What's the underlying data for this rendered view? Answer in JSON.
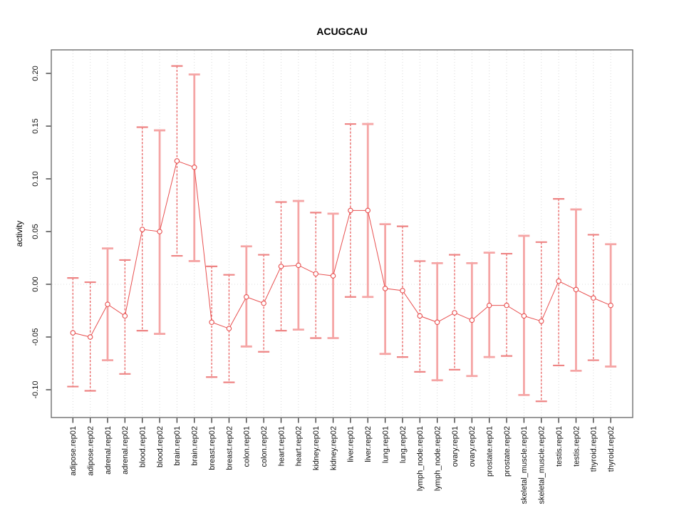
{
  "chart_data": {
    "type": "line",
    "title": "ACUGCAU",
    "ylabel": "activity",
    "xlabel": "",
    "legend": "none",
    "grid": "vertical-dotted",
    "zero_line": true,
    "ylim": [
      -0.126,
      0.222
    ],
    "yticks": [
      -0.1,
      -0.05,
      0.0,
      0.05,
      0.1,
      0.15,
      0.2
    ],
    "categories": [
      "adipose.rep01",
      "adipose.rep02",
      "adrenal.rep01",
      "adrenal.rep02",
      "blood.rep01",
      "blood.rep02",
      "brain.rep01",
      "brain.rep02",
      "breast.rep01",
      "breast.rep02",
      "colon.rep01",
      "colon.rep02",
      "heart.rep01",
      "heart.rep02",
      "kidney.rep01",
      "kidney.rep02",
      "liver.rep01",
      "liver.rep02",
      "lung.rep01",
      "lung.rep02",
      "lymph_node.rep01",
      "lymph_node.rep02",
      "ovary.rep01",
      "ovary.rep02",
      "prostate.rep01",
      "prostate.rep02",
      "skeletal_muscle.rep01",
      "skeletal_muscle.rep02",
      "testis.rep01",
      "testis.rep02",
      "thyroid.rep01",
      "thyroid.rep02"
    ],
    "series": [
      {
        "name": "activity",
        "values": [
          -0.046,
          -0.05,
          -0.019,
          -0.03,
          0.052,
          0.05,
          0.117,
          0.111,
          -0.036,
          -0.042,
          -0.012,
          -0.018,
          0.017,
          0.018,
          0.01,
          0.008,
          0.07,
          0.07,
          -0.004,
          -0.006,
          -0.03,
          -0.036,
          -0.027,
          -0.034,
          -0.02,
          -0.02,
          -0.03,
          -0.035,
          0.003,
          -0.005,
          -0.013,
          -0.02
        ],
        "lower": [
          -0.097,
          -0.101,
          -0.072,
          -0.085,
          -0.044,
          -0.047,
          0.027,
          0.022,
          -0.088,
          -0.093,
          -0.059,
          -0.064,
          -0.044,
          -0.043,
          -0.051,
          -0.051,
          -0.012,
          -0.012,
          -0.066,
          -0.069,
          -0.083,
          -0.091,
          -0.081,
          -0.087,
          -0.069,
          -0.068,
          -0.105,
          -0.111,
          -0.077,
          -0.082,
          -0.072,
          -0.078
        ],
        "upper": [
          0.006,
          0.002,
          0.034,
          0.023,
          0.149,
          0.146,
          0.207,
          0.199,
          0.017,
          0.009,
          0.036,
          0.028,
          0.078,
          0.079,
          0.068,
          0.067,
          0.152,
          0.152,
          0.057,
          0.055,
          0.022,
          0.02,
          0.028,
          0.02,
          0.03,
          0.029,
          0.046,
          0.04,
          0.081,
          0.071,
          0.047,
          0.038
        ]
      }
    ],
    "bar_styles": [
      "dashed",
      "dashed",
      "solid",
      "dashed",
      "dashed",
      "solid",
      "dashed",
      "solid",
      "dashed",
      "dashed",
      "solid",
      "dashed",
      "dashed",
      "solid",
      "dashed",
      "solid",
      "dashed",
      "solid",
      "solid",
      "dashed",
      "dashed",
      "solid",
      "dashed",
      "solid",
      "solid",
      "dashed",
      "solid",
      "dashed",
      "dashed",
      "solid",
      "dashed",
      "solid"
    ],
    "colors": {
      "line": "#e85050",
      "marker": "#e85050",
      "dashed_bar": "#e85555",
      "dashed_cap": "#ee8484",
      "pale_bar": "#f5a5a5",
      "grid": "#d9d9d9",
      "zero_line": "#dddddd",
      "frame": "#6e6e6e",
      "tick": "#333333",
      "text": "#111111"
    }
  }
}
